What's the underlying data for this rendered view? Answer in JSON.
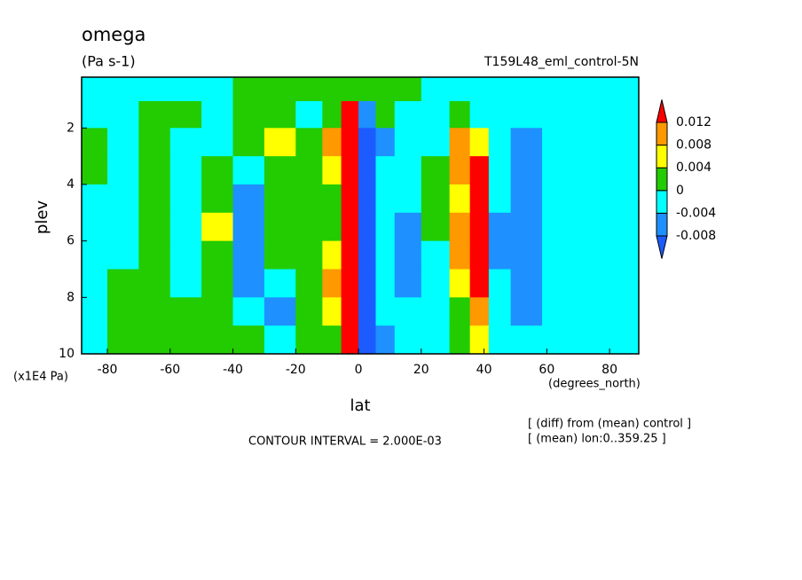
{
  "chart_data": {
    "type": "contour",
    "title": "omega",
    "subtitle": "(Pa s-1)",
    "run_label": "T159L48_eml_control-5N",
    "xlabel": "lat",
    "ylabel": "plev",
    "x_unit_label": "(degrees_north)",
    "y_unit_label": "(x1E4 Pa)",
    "contour_interval_label": "CONTOUR INTERVAL = 2.000E-03",
    "notes": [
      "[ (diff) from (mean) control ]",
      "[ (mean) lon:0..359.25 ]"
    ],
    "xlim": [
      -88.2,
      89.3
    ],
    "xticks": [
      -80,
      -60,
      -40,
      -20,
      0,
      20,
      40,
      60,
      80
    ],
    "ylim": [
      10,
      0.2
    ],
    "yticks": [
      2,
      4,
      6,
      8,
      10
    ],
    "x": [
      -85,
      -75,
      -65,
      -55,
      -45,
      -35,
      -25,
      -15,
      -8,
      -3,
      3,
      8,
      15,
      25,
      33,
      38,
      45,
      52,
      65,
      80
    ],
    "y": [
      0.6,
      1.5,
      2.5,
      3.5,
      4.5,
      5.5,
      6.5,
      7.5,
      8.5,
      9.5
    ],
    "z": [
      [
        -0.002,
        -0.002,
        -0.002,
        -0.002,
        -0.002,
        0.002,
        0.002,
        0.002,
        0.002,
        0.002,
        0.002,
        0.002,
        0.002,
        -0.002,
        -0.002,
        -0.002,
        -0.002,
        -0.002,
        -0.002,
        -0.002
      ],
      [
        -0.002,
        -0.002,
        0.002,
        0.002,
        -0.002,
        0.002,
        0.002,
        -0.002,
        0.002,
        0.014,
        -0.006,
        0.002,
        -0.002,
        -0.002,
        0.002,
        -0.002,
        -0.002,
        -0.002,
        -0.002,
        -0.002
      ],
      [
        0.002,
        -0.002,
        0.002,
        -0.002,
        -0.002,
        0.002,
        0.006,
        0.002,
        0.01,
        0.014,
        -0.01,
        -0.006,
        -0.002,
        -0.002,
        0.01,
        0.006,
        -0.002,
        -0.006,
        -0.002,
        -0.002
      ],
      [
        0.002,
        -0.002,
        0.002,
        -0.002,
        0.002,
        -0.002,
        0.002,
        0.002,
        0.006,
        0.014,
        -0.01,
        -0.002,
        -0.002,
        0.002,
        0.01,
        0.014,
        -0.002,
        -0.006,
        -0.002,
        -0.002
      ],
      [
        -0.002,
        -0.002,
        0.002,
        -0.002,
        0.002,
        -0.006,
        0.002,
        0.002,
        0.002,
        0.014,
        -0.01,
        -0.002,
        -0.002,
        0.002,
        0.006,
        0.014,
        -0.002,
        -0.006,
        -0.002,
        -0.002
      ],
      [
        -0.002,
        -0.002,
        0.002,
        -0.002,
        0.006,
        -0.006,
        0.002,
        0.002,
        0.002,
        0.014,
        -0.01,
        -0.002,
        -0.006,
        0.002,
        0.01,
        0.014,
        -0.006,
        -0.006,
        -0.002,
        -0.002
      ],
      [
        -0.002,
        -0.002,
        0.002,
        -0.002,
        0.002,
        -0.006,
        0.002,
        0.002,
        0.006,
        0.014,
        -0.01,
        -0.002,
        -0.006,
        -0.002,
        0.01,
        0.014,
        -0.006,
        -0.006,
        -0.002,
        -0.002
      ],
      [
        -0.002,
        0.002,
        0.002,
        -0.002,
        0.002,
        -0.006,
        -0.002,
        0.002,
        0.01,
        0.014,
        -0.01,
        -0.002,
        -0.006,
        -0.002,
        0.006,
        0.014,
        -0.002,
        -0.006,
        -0.002,
        -0.002
      ],
      [
        -0.002,
        0.002,
        0.002,
        0.002,
        0.002,
        -0.002,
        -0.006,
        0.002,
        0.006,
        0.014,
        -0.01,
        -0.002,
        -0.002,
        -0.002,
        0.002,
        0.01,
        -0.002,
        -0.006,
        -0.002,
        -0.002
      ],
      [
        -0.002,
        0.002,
        0.002,
        0.002,
        0.002,
        0.002,
        -0.002,
        0.002,
        0.002,
        0.014,
        -0.01,
        -0.006,
        -0.002,
        -0.002,
        0.002,
        0.006,
        -0.002,
        -0.002,
        -0.002,
        -0.002
      ]
    ],
    "levels": [
      -0.008,
      -0.004,
      0,
      0.004,
      0.008,
      0.012
    ],
    "colors": [
      "#1c5cff",
      "#1e90ff",
      "#00ffff",
      "#22cc00",
      "#ffff00",
      "#ff9900",
      "#ff0000"
    ]
  }
}
